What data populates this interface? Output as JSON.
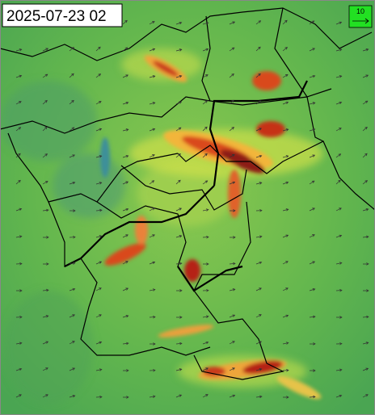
{
  "map": {
    "timestamp": "2025-07-23 02"
  },
  "legend": {
    "label": "10"
  }
}
